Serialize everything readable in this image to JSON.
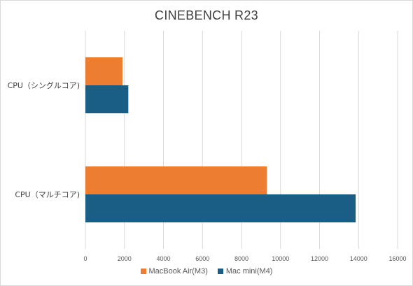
{
  "chart_data": {
    "type": "bar",
    "orientation": "horizontal",
    "title": "CINEBENCH R23",
    "categories": [
      "CPU（シングルコア)",
      "CPU（マルチコア)"
    ],
    "series": [
      {
        "name": "MacBook Air(M3)",
        "values": [
          1900,
          9300
        ],
        "color": "#ed7d31"
      },
      {
        "name": "Mac mini(M4)",
        "values": [
          2200,
          13850
        ],
        "color": "#1a5e86"
      }
    ],
    "xlim": [
      0,
      16000
    ],
    "xticks": [
      "0",
      "2000",
      "4000",
      "6000",
      "8000",
      "10000",
      "12000",
      "14000",
      "16000"
    ],
    "grid": true,
    "legend_position": "bottom"
  }
}
